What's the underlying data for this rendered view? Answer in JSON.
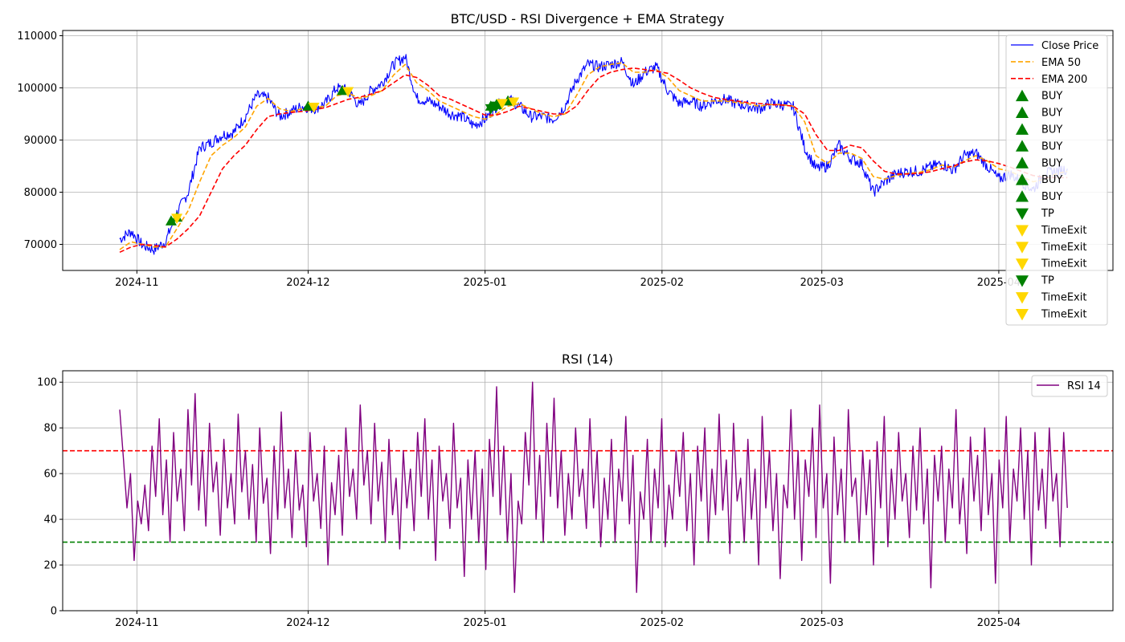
{
  "chart_data": [
    {
      "type": "line",
      "title": "BTC/USD - RSI Divergence + EMA Strategy",
      "xlabel": "",
      "ylabel": "",
      "x_range": [
        "2024-10-19",
        "2025-04-21"
      ],
      "ylim": [
        65000,
        111000
      ],
      "yticks": [
        70000,
        80000,
        90000,
        100000,
        110000
      ],
      "ytick_labels": [
        "70000",
        "80000",
        "90000",
        "100000",
        "110000"
      ],
      "xticks": [
        "2024-11-01",
        "2024-12-01",
        "2025-01-01",
        "2025-02-01",
        "2025-03-01",
        "2025-04-01"
      ],
      "xtick_labels": [
        "2024-11",
        "2024-12",
        "2025-01",
        "2025-02",
        "2025-03",
        "2025-04"
      ],
      "grid": true,
      "legend_position": "upper-right",
      "x": [
        "2024-10-29",
        "2024-10-31",
        "2024-11-02",
        "2024-11-04",
        "2024-11-06",
        "2024-11-08",
        "2024-11-10",
        "2024-11-12",
        "2024-11-14",
        "2024-11-16",
        "2024-11-18",
        "2024-11-20",
        "2024-11-22",
        "2024-11-24",
        "2024-11-26",
        "2024-11-28",
        "2024-11-30",
        "2024-12-02",
        "2024-12-04",
        "2024-12-06",
        "2024-12-08",
        "2024-12-10",
        "2024-12-12",
        "2024-12-14",
        "2024-12-16",
        "2024-12-18",
        "2024-12-20",
        "2024-12-22",
        "2024-12-24",
        "2024-12-26",
        "2024-12-28",
        "2024-12-30",
        "2025-01-01",
        "2025-01-03",
        "2025-01-05",
        "2025-01-07",
        "2025-01-09",
        "2025-01-11",
        "2025-01-13",
        "2025-01-15",
        "2025-01-17",
        "2025-01-19",
        "2025-01-21",
        "2025-01-23",
        "2025-01-25",
        "2025-01-27",
        "2025-01-29",
        "2025-01-31",
        "2025-02-02",
        "2025-02-04",
        "2025-02-06",
        "2025-02-08",
        "2025-02-10",
        "2025-02-12",
        "2025-02-14",
        "2025-02-16",
        "2025-02-18",
        "2025-02-20",
        "2025-02-22",
        "2025-02-24",
        "2025-02-26",
        "2025-02-28",
        "2025-03-02",
        "2025-03-04",
        "2025-03-06",
        "2025-03-08",
        "2025-03-10",
        "2025-03-12",
        "2025-03-14",
        "2025-03-16",
        "2025-03-18",
        "2025-03-20",
        "2025-03-22",
        "2025-03-24",
        "2025-03-26",
        "2025-03-28",
        "2025-03-30",
        "2025-04-01",
        "2025-04-03",
        "2025-04-05",
        "2025-04-07",
        "2025-04-09",
        "2025-04-11",
        "2025-04-13"
      ],
      "series": [
        {
          "name": "Close Price",
          "color": "#0000ff",
          "style": "solid",
          "values": [
            71000,
            72500,
            69800,
            69000,
            70500,
            76000,
            80000,
            88500,
            89500,
            91000,
            91500,
            94500,
            98500,
            98000,
            94500,
            95500,
            96500,
            96000,
            97000,
            100000,
            99500,
            96500,
            99500,
            101000,
            104500,
            106000,
            98000,
            97500,
            96500,
            95000,
            94500,
            92800,
            94000,
            96500,
            98000,
            96500,
            94500,
            94500,
            94000,
            96500,
            101500,
            104500,
            104000,
            104500,
            105000,
            100500,
            103000,
            104000,
            99500,
            97000,
            97500,
            96500,
            97500,
            97800,
            97000,
            96500,
            96000,
            97000,
            96800,
            96300,
            88500,
            84500,
            85000,
            89000,
            86500,
            85500,
            80000,
            82000,
            83500,
            84000,
            84000,
            84800,
            85500,
            84200,
            87000,
            87500,
            85000,
            82500,
            83500,
            82000,
            80500,
            83500,
            84000,
            84500
          ]
        },
        {
          "name": "EMA 50",
          "color": "#ffa500",
          "style": "dashed",
          "values": [
            69000,
            70500,
            70000,
            69500,
            69500,
            73000,
            76500,
            82000,
            87000,
            89000,
            90500,
            92500,
            96500,
            98000,
            96000,
            95500,
            96000,
            96200,
            96500,
            98500,
            99000,
            98000,
            98500,
            99500,
            102500,
            104500,
            101000,
            99500,
            97500,
            96500,
            95500,
            94500,
            94000,
            95000,
            96500,
            97000,
            96000,
            95000,
            94500,
            95000,
            98500,
            102500,
            104000,
            104500,
            104800,
            103000,
            103000,
            103500,
            102000,
            99500,
            98500,
            97500,
            97500,
            97500,
            97200,
            97000,
            96500,
            96800,
            96800,
            96500,
            93500,
            87000,
            85500,
            87500,
            87500,
            86500,
            83000,
            82500,
            83200,
            83600,
            83800,
            84300,
            85200,
            84800,
            86000,
            87000,
            86000,
            84500,
            84000,
            83000,
            82000,
            82500,
            83500,
            84000
          ]
        },
        {
          "name": "EMA 200",
          "color": "#ff0000",
          "style": "dashed",
          "values": [
            68500,
            69500,
            70000,
            69800,
            69500,
            71000,
            73000,
            75500,
            80000,
            84500,
            87000,
            89000,
            92000,
            94500,
            95000,
            95300,
            95500,
            95800,
            96200,
            97000,
            97800,
            98200,
            98800,
            99500,
            101000,
            102500,
            102000,
            100500,
            98500,
            97800,
            96800,
            95800,
            94800,
            94800,
            95500,
            96500,
            96000,
            95500,
            95000,
            95000,
            96500,
            99500,
            102000,
            103000,
            103500,
            103800,
            103500,
            103200,
            102800,
            101500,
            100000,
            99000,
            98200,
            97800,
            97500,
            97200,
            97000,
            96800,
            96700,
            96500,
            95000,
            91000,
            88000,
            88000,
            89000,
            88500,
            86000,
            84000,
            83500,
            83500,
            83600,
            83900,
            84500,
            85000,
            85800,
            86200,
            86000,
            85500,
            84800,
            84000,
            83200,
            82800,
            82800,
            82800
          ]
        }
      ],
      "markers": [
        {
          "label": "BUY",
          "color": "#008000",
          "shape": "triangle-up",
          "x": "2024-11-07",
          "y": 74500
        },
        {
          "label": "BUY",
          "color": "#008000",
          "shape": "triangle-up",
          "x": "2024-11-08",
          "y": 75200
        },
        {
          "label": "BUY",
          "color": "#008000",
          "shape": "triangle-up",
          "x": "2024-12-01",
          "y": 96500
        },
        {
          "label": "BUY",
          "color": "#008000",
          "shape": "triangle-up",
          "x": "2024-12-07",
          "y": 99500
        },
        {
          "label": "BUY",
          "color": "#008000",
          "shape": "triangle-up",
          "x": "2025-01-02",
          "y": 96500
        },
        {
          "label": "BUY",
          "color": "#008000",
          "shape": "triangle-up",
          "x": "2025-01-03",
          "y": 96800
        },
        {
          "label": "BUY",
          "color": "#008000",
          "shape": "triangle-up",
          "x": "2025-01-05",
          "y": 97500
        },
        {
          "label": "TP",
          "color": "#008000",
          "shape": "triangle-down",
          "x": "2025-01-03",
          "y": 96500
        },
        {
          "label": "TimeExit",
          "color": "#ffd700",
          "shape": "triangle-down",
          "x": "2024-11-08",
          "y": 75000
        },
        {
          "label": "TimeExit",
          "color": "#ffd700",
          "shape": "triangle-down",
          "x": "2024-12-02",
          "y": 96300
        },
        {
          "label": "TimeExit",
          "color": "#ffd700",
          "shape": "triangle-down",
          "x": "2024-12-08",
          "y": 99300
        },
        {
          "label": "TP",
          "color": "#008000",
          "shape": "triangle-down",
          "x": "2025-01-02",
          "y": 96000
        },
        {
          "label": "TimeExit",
          "color": "#ffd700",
          "shape": "triangle-down",
          "x": "2025-01-04",
          "y": 97000
        },
        {
          "label": "TimeExit",
          "color": "#ffd700",
          "shape": "triangle-down",
          "x": "2025-01-06",
          "y": 97300
        }
      ]
    },
    {
      "type": "line",
      "title": "RSI (14)",
      "xlabel": "",
      "ylabel": "",
      "x_range": [
        "2024-10-19",
        "2025-04-21"
      ],
      "ylim": [
        0,
        105
      ],
      "yticks": [
        0,
        20,
        40,
        60,
        80,
        100
      ],
      "ytick_labels": [
        "0",
        "20",
        "40",
        "60",
        "80",
        "100"
      ],
      "xticks": [
        "2024-11-01",
        "2024-12-01",
        "2025-01-01",
        "2025-02-01",
        "2025-03-01",
        "2025-04-01"
      ],
      "xtick_labels": [
        "2024-11",
        "2024-12",
        "2025-01",
        "2025-02",
        "2025-03",
        "2025-04"
      ],
      "grid": true,
      "legend_position": "upper-right",
      "x_start": "2024-10-29",
      "x_end": "2025-04-13",
      "hlines": [
        {
          "y": 70,
          "color": "#ff0000",
          "style": "dashed"
        },
        {
          "y": 30,
          "color": "#008000",
          "style": "dashed"
        }
      ],
      "series": [
        {
          "name": "RSI 14",
          "color": "#800080",
          "style": "solid",
          "values": [
            88,
            67,
            45,
            60,
            22,
            48,
            38,
            55,
            35,
            72,
            50,
            84,
            42,
            66,
            30,
            78,
            48,
            62,
            35,
            88,
            55,
            95,
            44,
            70,
            37,
            82,
            52,
            65,
            33,
            75,
            45,
            60,
            38,
            86,
            52,
            70,
            40,
            64,
            30,
            80,
            47,
            58,
            25,
            72,
            40,
            87,
            45,
            62,
            32,
            70,
            44,
            55,
            28,
            78,
            48,
            60,
            36,
            72,
            20,
            56,
            42,
            68,
            33,
            80,
            50,
            62,
            40,
            90,
            55,
            70,
            38,
            82,
            48,
            65,
            30,
            75,
            42,
            58,
            27,
            70,
            45,
            62,
            35,
            78,
            50,
            84,
            40,
            66,
            22,
            72,
            48,
            60,
            36,
            82,
            45,
            58,
            15,
            66,
            40,
            70,
            30,
            62,
            18,
            75,
            50,
            98,
            42,
            72,
            30,
            60,
            8,
            48,
            38,
            78,
            55,
            100,
            40,
            68,
            30,
            82,
            50,
            93,
            45,
            70,
            33,
            60,
            40,
            80,
            50,
            62,
            36,
            84,
            45,
            70,
            28,
            58,
            40,
            75,
            30,
            62,
            48,
            85,
            38,
            68,
            8,
            52,
            40,
            75,
            30,
            62,
            45,
            84,
            28,
            55,
            40,
            70,
            50,
            78,
            35,
            60,
            20,
            72,
            48,
            80,
            30,
            62,
            42,
            86,
            44,
            66,
            25,
            82,
            48,
            58,
            30,
            75,
            40,
            62,
            20,
            85,
            45,
            70,
            35,
            60,
            14,
            55,
            45,
            88,
            40,
            70,
            22,
            66,
            50,
            80,
            32,
            90,
            45,
            60,
            12,
            76,
            42,
            62,
            30,
            88,
            50,
            58,
            30,
            70,
            42,
            66,
            20,
            74,
            45,
            85,
            28,
            62,
            40,
            78,
            48,
            60,
            32,
            72,
            44,
            80,
            38,
            62,
            10,
            68,
            48,
            72,
            30,
            62,
            45,
            88,
            38,
            58,
            25,
            76,
            48,
            68,
            35,
            80,
            42,
            60,
            12,
            66,
            45,
            85,
            30,
            62,
            48,
            80,
            40,
            70,
            20,
            78,
            44,
            62,
            36,
            80,
            48,
            60,
            28,
            78,
            45
          ]
        }
      ]
    }
  ]
}
